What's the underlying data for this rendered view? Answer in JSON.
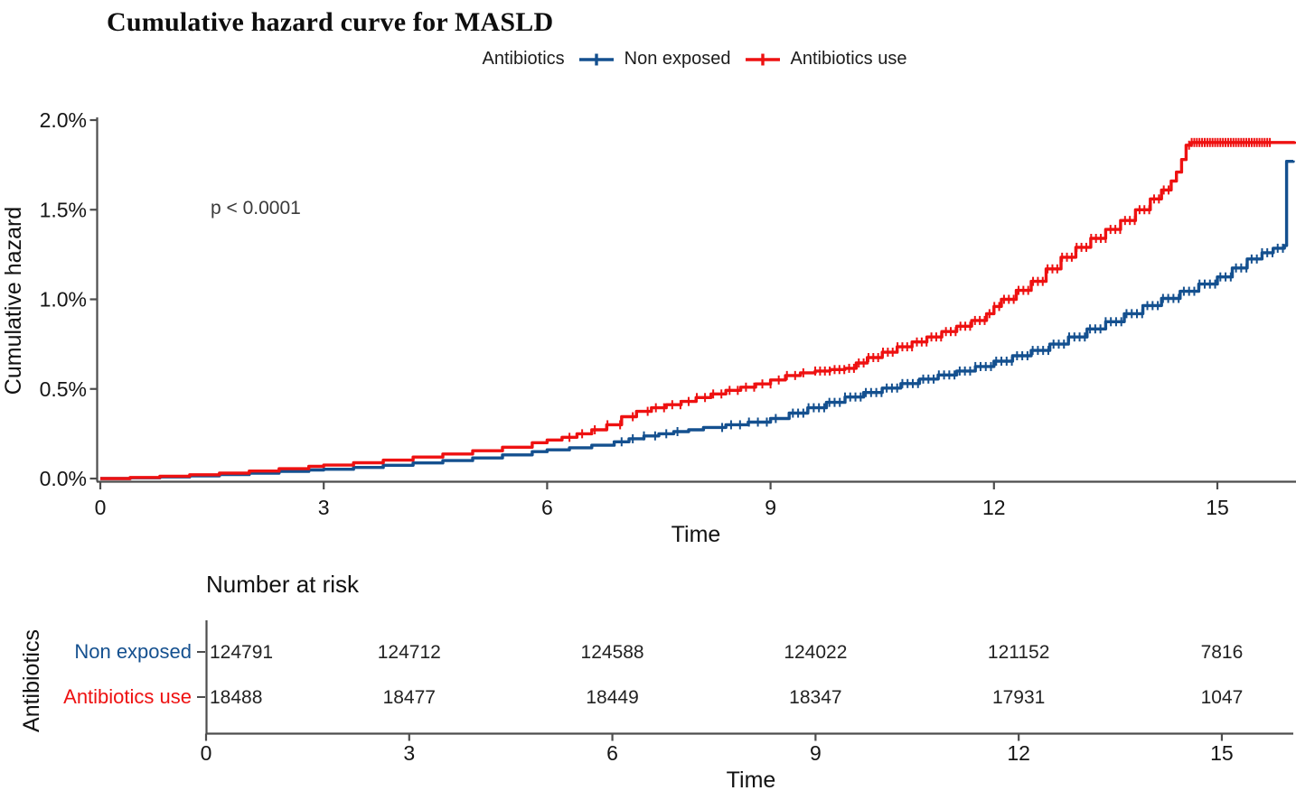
{
  "title": "Cumulative hazard curve for MASLD",
  "annotation": {
    "p_value": "p < 0.0001"
  },
  "legend": {
    "label": "Antibiotics",
    "series": [
      {
        "name": "Non exposed",
        "color": "#14508f"
      },
      {
        "name": "Antibiotics use",
        "color": "#ee1111"
      }
    ]
  },
  "axes": {
    "y_label": "Cumulative hazard",
    "x_label": "Time",
    "y_ticks": [
      "0.0%",
      "0.5%",
      "1.0%",
      "1.5%",
      "2.0%"
    ],
    "x_ticks": [
      "0",
      "3",
      "6",
      "9",
      "12",
      "15"
    ],
    "axis_color": "#4d4d4d",
    "tick_text_color": "#151515"
  },
  "risk_table": {
    "heading": "Number at risk",
    "group_label": "Antibiotics",
    "x_label": "Time",
    "x_ticks": [
      "0",
      "3",
      "6",
      "9",
      "12",
      "15"
    ],
    "rows": [
      {
        "name": "Non exposed",
        "color": "#14508f",
        "values": [
          "124791",
          "124712",
          "124588",
          "124022",
          "121152",
          "7816"
        ]
      },
      {
        "name": "Antibiotics use",
        "color": "#ee1111",
        "values": [
          "18488",
          "18477",
          "18449",
          "18347",
          "17931",
          "1047"
        ]
      }
    ],
    "value_color": "#222222"
  },
  "chart_data": {
    "type": "line",
    "subtype": "cumulative-hazard-step-curves",
    "title": "Cumulative hazard curve for MASLD",
    "xlabel": "Time",
    "ylabel": "Cumulative hazard",
    "xlim": [
      0,
      16.05
    ],
    "ylim": [
      0,
      2.0
    ],
    "y_unit": "%",
    "grid": false,
    "legend_position": "top",
    "p_value": "p < 0.0001",
    "series": [
      {
        "name": "Non exposed",
        "color": "#14508f",
        "step_points": [
          [
            0,
            0
          ],
          [
            0.4,
            0.004
          ],
          [
            0.8,
            0.009
          ],
          [
            1.2,
            0.015
          ],
          [
            1.6,
            0.022
          ],
          [
            2,
            0.03
          ],
          [
            2.4,
            0.04
          ],
          [
            2.8,
            0.048
          ],
          [
            3,
            0.052
          ],
          [
            3.4,
            0.062
          ],
          [
            3.8,
            0.074
          ],
          [
            4.2,
            0.087
          ],
          [
            4.6,
            0.1
          ],
          [
            5,
            0.115
          ],
          [
            5.4,
            0.132
          ],
          [
            5.8,
            0.15
          ],
          [
            6,
            0.16
          ],
          [
            6.3,
            0.172
          ],
          [
            6.6,
            0.186
          ],
          [
            6.9,
            0.205
          ],
          [
            7.1,
            0.222
          ],
          [
            7.3,
            0.238
          ],
          [
            7.5,
            0.25
          ],
          [
            7.7,
            0.262
          ],
          [
            7.9,
            0.272
          ],
          [
            8.1,
            0.285
          ],
          [
            8.4,
            0.3
          ],
          [
            8.7,
            0.315
          ],
          [
            9,
            0.335
          ],
          [
            9.25,
            0.365
          ],
          [
            9.5,
            0.395
          ],
          [
            9.75,
            0.425
          ],
          [
            10,
            0.455
          ],
          [
            10.25,
            0.48
          ],
          [
            10.5,
            0.505
          ],
          [
            10.75,
            0.53
          ],
          [
            11,
            0.555
          ],
          [
            11.25,
            0.578
          ],
          [
            11.5,
            0.6
          ],
          [
            11.75,
            0.625
          ],
          [
            12,
            0.655
          ],
          [
            12.25,
            0.685
          ],
          [
            12.5,
            0.715
          ],
          [
            12.75,
            0.75
          ],
          [
            13,
            0.79
          ],
          [
            13.25,
            0.835
          ],
          [
            13.5,
            0.875
          ],
          [
            13.75,
            0.92
          ],
          [
            14,
            0.965
          ],
          [
            14.25,
            1.005
          ],
          [
            14.5,
            1.045
          ],
          [
            14.75,
            1.085
          ],
          [
            15,
            1.125
          ],
          [
            15.2,
            1.175
          ],
          [
            15.4,
            1.225
          ],
          [
            15.6,
            1.26
          ],
          [
            15.75,
            1.285
          ],
          [
            15.9,
            1.3
          ],
          [
            15.93,
            1.77
          ],
          [
            16.02,
            1.775
          ]
        ],
        "censor_ranges": [
          {
            "from": 7.0,
            "to": 7.75,
            "step": 0.15
          },
          {
            "from": 8.35,
            "to": 9.15,
            "step": 0.12
          },
          {
            "from": 9.3,
            "to": 15.88,
            "step": 0.07
          }
        ]
      },
      {
        "name": "Antibiotics use",
        "color": "#ee1111",
        "step_points": [
          [
            0,
            0
          ],
          [
            0.4,
            0.006
          ],
          [
            0.8,
            0.013
          ],
          [
            1.2,
            0.021
          ],
          [
            1.6,
            0.03
          ],
          [
            2,
            0.042
          ],
          [
            2.4,
            0.055
          ],
          [
            2.8,
            0.068
          ],
          [
            3,
            0.075
          ],
          [
            3.4,
            0.088
          ],
          [
            3.8,
            0.103
          ],
          [
            4.2,
            0.12
          ],
          [
            4.6,
            0.137
          ],
          [
            5,
            0.155
          ],
          [
            5.4,
            0.175
          ],
          [
            5.8,
            0.2
          ],
          [
            6,
            0.215
          ],
          [
            6.2,
            0.23
          ],
          [
            6.4,
            0.25
          ],
          [
            6.6,
            0.272
          ],
          [
            6.8,
            0.3
          ],
          [
            7,
            0.345
          ],
          [
            7.2,
            0.375
          ],
          [
            7.4,
            0.395
          ],
          [
            7.6,
            0.412
          ],
          [
            7.8,
            0.43
          ],
          [
            8,
            0.452
          ],
          [
            8.2,
            0.472
          ],
          [
            8.4,
            0.492
          ],
          [
            8.6,
            0.51
          ],
          [
            8.8,
            0.528
          ],
          [
            9,
            0.55
          ],
          [
            9.2,
            0.575
          ],
          [
            9.4,
            0.59
          ],
          [
            9.6,
            0.6
          ],
          [
            9.8,
            0.608
          ],
          [
            10,
            0.615
          ],
          [
            10.15,
            0.645
          ],
          [
            10.3,
            0.675
          ],
          [
            10.5,
            0.705
          ],
          [
            10.7,
            0.735
          ],
          [
            10.9,
            0.762
          ],
          [
            11.1,
            0.79
          ],
          [
            11.3,
            0.82
          ],
          [
            11.5,
            0.85
          ],
          [
            11.7,
            0.882
          ],
          [
            11.9,
            0.92
          ],
          [
            12,
            0.96
          ],
          [
            12.1,
            1.0
          ],
          [
            12.3,
            1.05
          ],
          [
            12.5,
            1.1
          ],
          [
            12.7,
            1.17
          ],
          [
            12.9,
            1.235
          ],
          [
            13.1,
            1.29
          ],
          [
            13.3,
            1.34
          ],
          [
            13.5,
            1.39
          ],
          [
            13.7,
            1.44
          ],
          [
            13.9,
            1.5
          ],
          [
            14.1,
            1.56
          ],
          [
            14.25,
            1.61
          ],
          [
            14.38,
            1.66
          ],
          [
            14.45,
            1.71
          ],
          [
            14.52,
            1.78
          ],
          [
            14.58,
            1.86
          ],
          [
            14.65,
            1.875
          ],
          [
            16.04,
            1.88
          ]
        ],
        "censor_ranges": [
          {
            "from": 6.3,
            "to": 7.15,
            "step": 0.17
          },
          {
            "from": 7.35,
            "to": 9.45,
            "step": 0.11
          },
          {
            "from": 9.6,
            "to": 14.4,
            "step": 0.065
          },
          {
            "from": 14.62,
            "to": 15.72,
            "step": 0.035
          }
        ]
      }
    ],
    "number_at_risk": {
      "times": [
        0,
        3,
        6,
        9,
        12,
        15
      ],
      "Non exposed": [
        124791,
        124712,
        124588,
        124022,
        121152,
        7816
      ],
      "Antibiotics use": [
        18488,
        18477,
        18449,
        18347,
        17931,
        1047
      ]
    }
  }
}
